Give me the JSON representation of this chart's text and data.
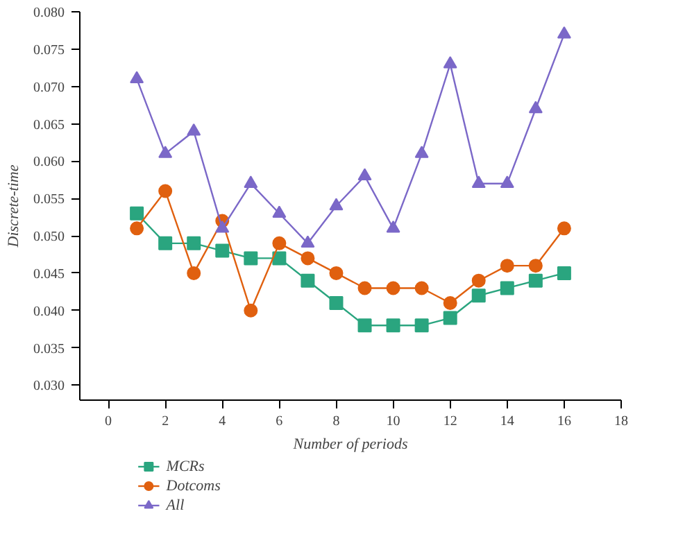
{
  "chart_data": {
    "type": "line",
    "xlabel": "Number of periods",
    "ylabel": "Discrete-time",
    "x": [
      1,
      2,
      3,
      4,
      5,
      6,
      7,
      8,
      9,
      10,
      11,
      12,
      13,
      14,
      15,
      16
    ],
    "xlim": [
      -1,
      18
    ],
    "xticks": [
      0,
      2,
      4,
      6,
      8,
      10,
      12,
      14,
      16,
      18
    ],
    "ylim": [
      0.028,
      0.08
    ],
    "yticks": [
      {
        "value": 0.03,
        "label": "0.030"
      },
      0.035,
      {
        "value": 0.04,
        "label": "0.040"
      },
      0.045,
      {
        "value": 0.05,
        "label": "0.050"
      },
      0.055,
      {
        "value": 0.06,
        "label": "0.060"
      },
      0.065,
      {
        "value": 0.07,
        "label": "0.070"
      },
      0.075,
      {
        "value": 0.08,
        "label": "0.080"
      }
    ],
    "grid": false,
    "legend": "bottom left",
    "line_style": "solid",
    "series": [
      {
        "name": "MCRs",
        "color": "#2aa57f",
        "marker": "square",
        "values": [
          0.053,
          0.049,
          0.049,
          0.048,
          0.047,
          0.047,
          0.044,
          0.041,
          0.038,
          0.038,
          0.038,
          0.039,
          0.042,
          0.043,
          0.044,
          0.045
        ]
      },
      {
        "name": "Dotcoms",
        "color": "#e0600f",
        "marker": "circle",
        "values": [
          0.051,
          0.056,
          0.045,
          0.052,
          0.04,
          0.049,
          0.047,
          0.045,
          0.043,
          0.043,
          0.043,
          0.041,
          0.044,
          0.046,
          0.046,
          0.051
        ]
      },
      {
        "name": "All",
        "color": "#7b68c8",
        "marker": "triangle",
        "values": [
          0.071,
          0.061,
          0.064,
          0.051,
          0.057,
          0.053,
          0.049,
          0.054,
          0.058,
          0.051,
          0.061,
          0.073,
          0.057,
          0.057,
          0.067,
          0.077
        ]
      }
    ]
  }
}
